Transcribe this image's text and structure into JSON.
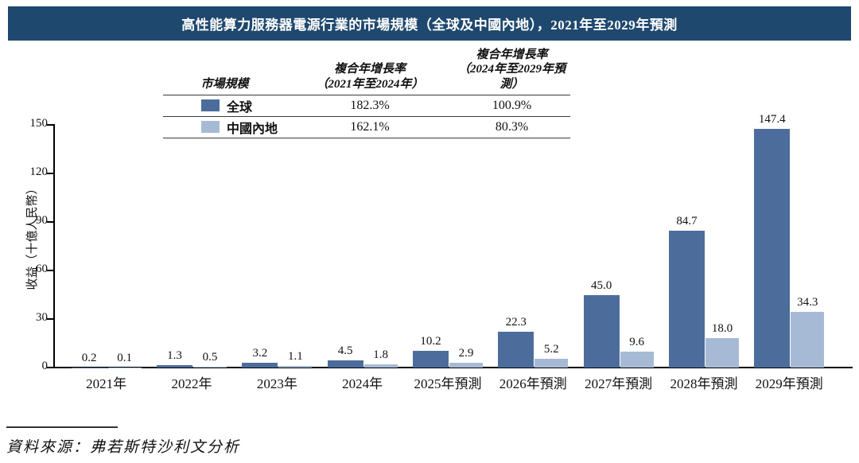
{
  "colors": {
    "title_bar_bg": "#1F486E",
    "title_text": "#FFFFFF",
    "global_series": "#4C6D9C",
    "china_series": "#A7BAD5",
    "axis": "#000000"
  },
  "legend_table": {
    "col1_header": "市場規模",
    "col2_header_line1": "複合年增長率",
    "col2_header_line2": "（2021年至2024年）",
    "col3_header_line1": "複合年增長率",
    "col3_header_line2": "（2024年至2029年預測）",
    "rows": [
      {
        "label": "全球",
        "swatch_color": "#4C6D9C",
        "cagr_2021_2024": "182.3%",
        "cagr_2024_2029": "100.9%"
      },
      {
        "label": "中國內地",
        "swatch_color": "#A7BAD5",
        "cagr_2021_2024": "162.1%",
        "cagr_2024_2029": "80.3%"
      }
    ]
  },
  "chart_data": {
    "type": "bar",
    "title": "高性能算力服務器電源行業的市場規模（全球及中國內地），2021年至2029年預測",
    "categories": [
      "2021年",
      "2022年",
      "2023年",
      "2024年",
      "2025年預測",
      "2026年預測",
      "2027年預測",
      "2028年預測",
      "2029年預測"
    ],
    "series": [
      {
        "name": "全球",
        "color": "#4C6D9C",
        "values": [
          0.2,
          1.3,
          3.2,
          4.5,
          10.2,
          22.3,
          45.0,
          84.7,
          147.4
        ]
      },
      {
        "name": "中國內地",
        "color": "#A7BAD5",
        "values": [
          0.1,
          0.5,
          1.1,
          1.8,
          2.9,
          5.2,
          9.6,
          18.0,
          34.3
        ]
      }
    ],
    "xlabel": "",
    "ylabel": "收益（十億人民幣）",
    "yticks": [
      0,
      30,
      60,
      90,
      120,
      150
    ],
    "ylim": [
      0,
      150
    ],
    "grid": false,
    "legend_position": "top-table",
    "value_labels": true
  },
  "source": "資料來源：弗若斯特沙利文分析"
}
